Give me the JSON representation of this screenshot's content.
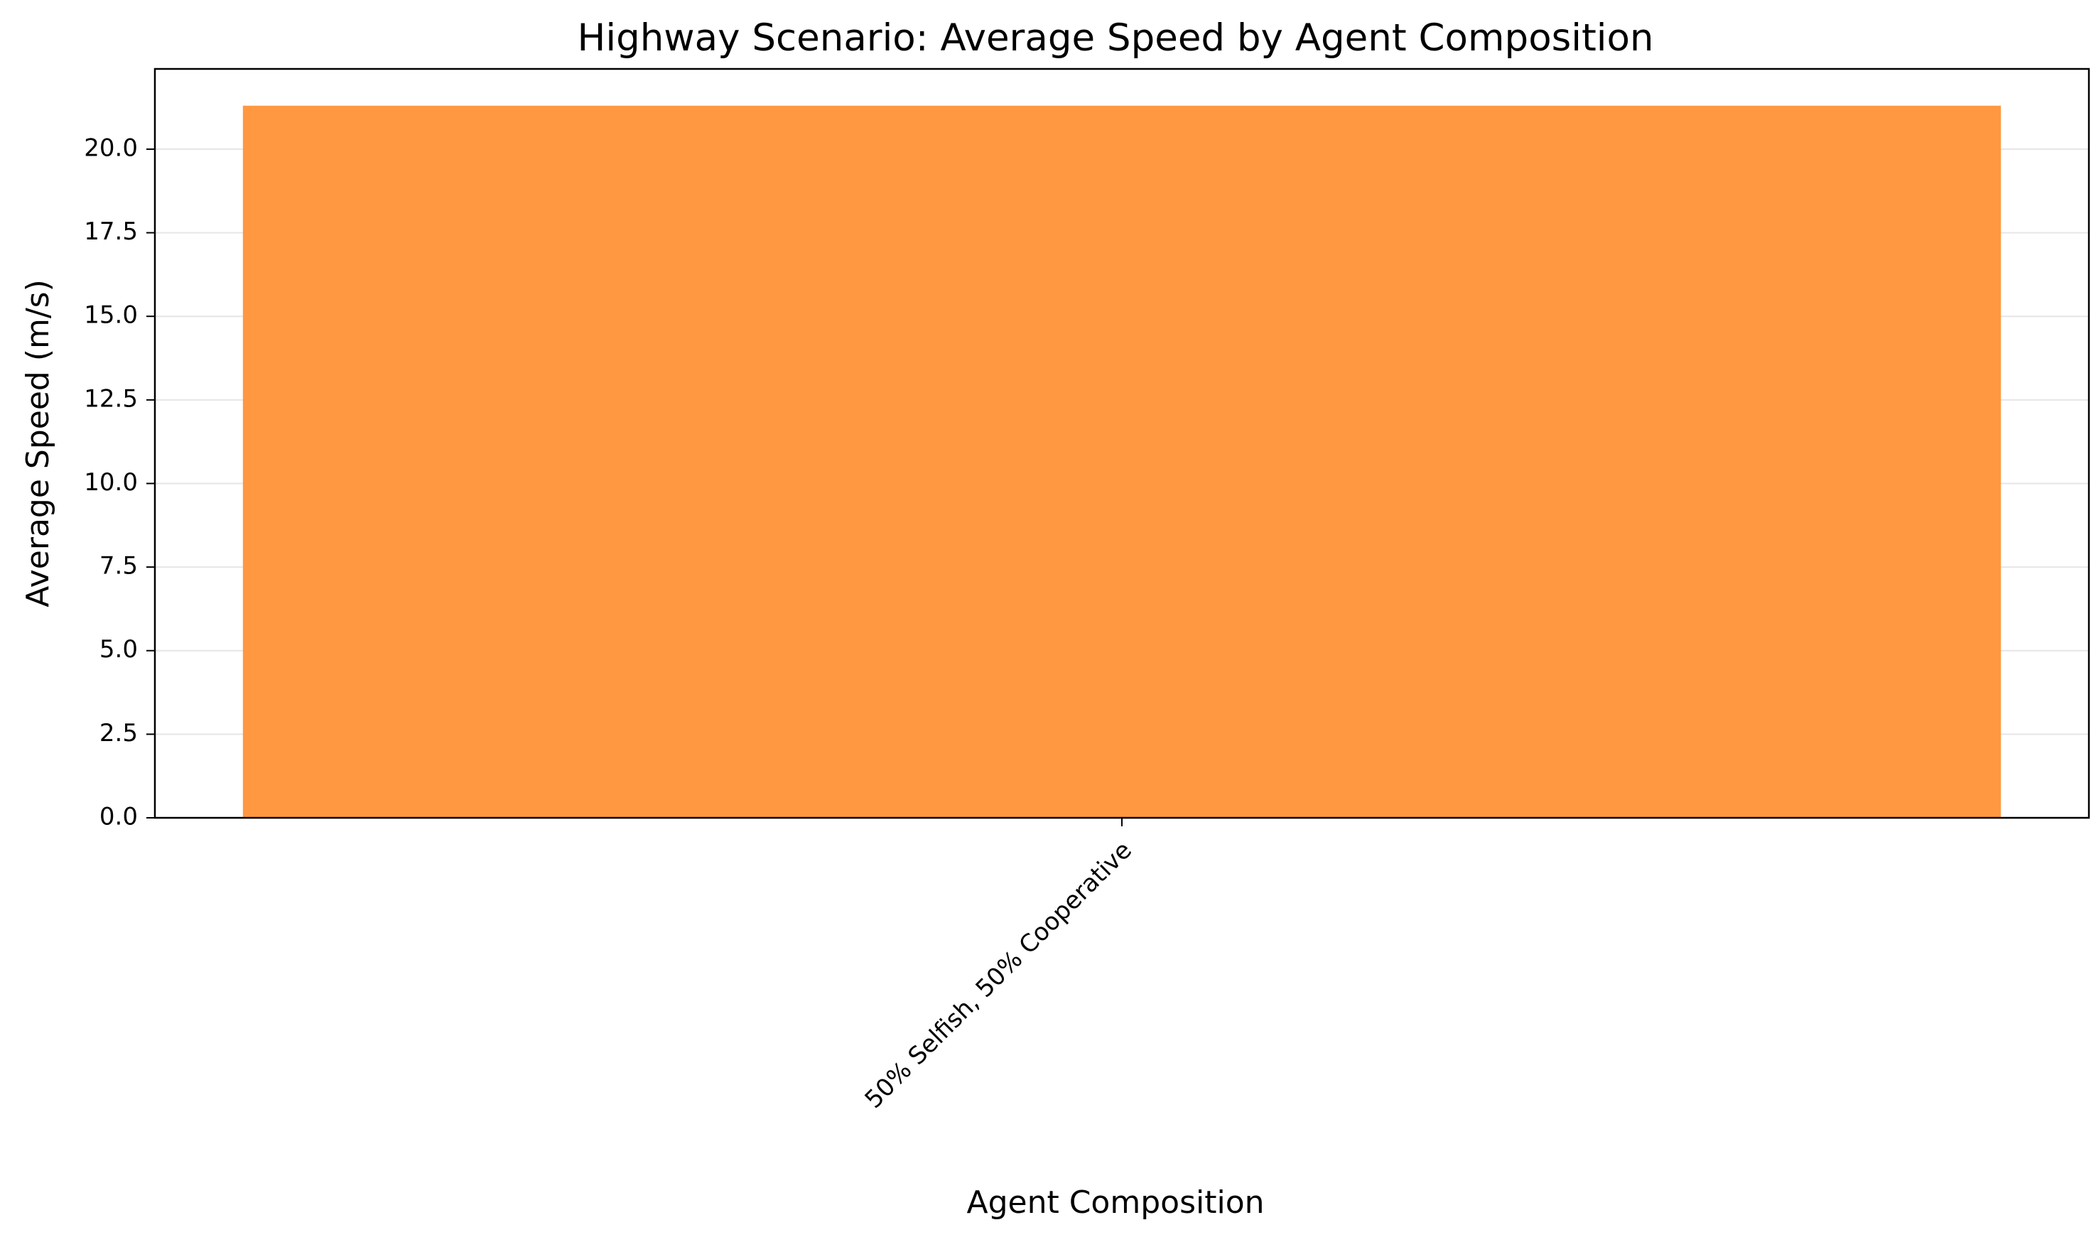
{
  "chart_data": {
    "type": "bar",
    "title": "Highway Scenario: Average Speed by Agent Composition",
    "xlabel": "Agent Composition",
    "ylabel": "Average Speed (m/s)",
    "categories": [
      "50% Selfish, 50% Cooperative"
    ],
    "values": [
      21.3
    ],
    "ylim": [
      0,
      22.4
    ],
    "yticks": [
      "0.0",
      "2.5",
      "5.0",
      "7.5",
      "10.0",
      "12.5",
      "15.0",
      "17.5",
      "20.0"
    ],
    "ytick_values": [
      0,
      2.5,
      5,
      7.5,
      10,
      12.5,
      15,
      17.5,
      20
    ],
    "grid": "y-major",
    "legend": "none",
    "bar_color": "#ff9841"
  }
}
